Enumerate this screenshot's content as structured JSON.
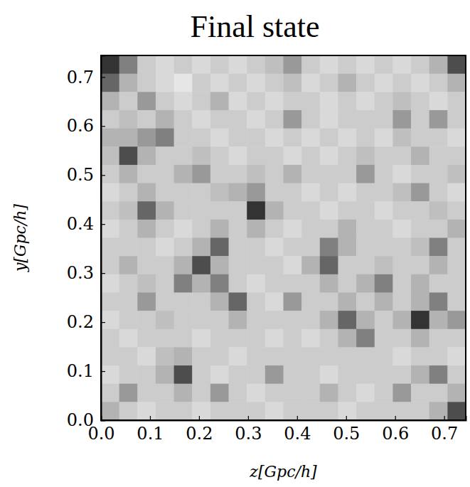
{
  "chart_data": {
    "type": "heatmap",
    "title": "Final state",
    "xlabel": "z[Gpc/h]",
    "ylabel": "y[Gpc/h]",
    "xlim": [
      0,
      0.744
    ],
    "ylim": [
      0,
      0.744
    ],
    "xticks": [
      {
        "value": 0,
        "label": "0.0"
      },
      {
        "value": 0.1,
        "label": "0.1"
      },
      {
        "value": 0.2,
        "label": "0.2"
      },
      {
        "value": 0.3,
        "label": "0.3"
      },
      {
        "value": 0.4,
        "label": "0.4"
      },
      {
        "value": 0.5,
        "label": "0.5"
      },
      {
        "value": 0.6,
        "label": "0.6"
      },
      {
        "value": 0.7,
        "label": "0.7"
      }
    ],
    "yticks": [
      {
        "value": 0,
        "label": "0.0"
      },
      {
        "value": 0.1,
        "label": "0.1"
      },
      {
        "value": 0.2,
        "label": "0.2"
      },
      {
        "value": 0.3,
        "label": "0.3"
      },
      {
        "value": 0.4,
        "label": "0.4"
      },
      {
        "value": 0.5,
        "label": "0.5"
      },
      {
        "value": 0.6,
        "label": "0.6"
      },
      {
        "value": 0.7,
        "label": "0.7"
      }
    ],
    "value_range": [
      0,
      1
    ],
    "colors": [
      "#ffffff",
      "#000000"
    ],
    "cells": [
      [
        0.8,
        0.5,
        0.2,
        0.15,
        0.2,
        0.15,
        0.2,
        0.15,
        0.2,
        0.25,
        0.4,
        0.2,
        0.15,
        0.2,
        0.15,
        0.2,
        0.15,
        0.2,
        0.3,
        0.7
      ],
      [
        0.6,
        0.3,
        0.2,
        0.15,
        0.1,
        0.2,
        0.15,
        0.2,
        0.15,
        0.2,
        0.25,
        0.15,
        0.2,
        0.3,
        0.2,
        0.15,
        0.2,
        0.15,
        0.2,
        0.3
      ],
      [
        0.3,
        0.2,
        0.4,
        0.2,
        0.15,
        0.2,
        0.3,
        0.15,
        0.2,
        0.15,
        0.2,
        0.2,
        0.15,
        0.2,
        0.15,
        0.2,
        0.25,
        0.2,
        0.15,
        0.2
      ],
      [
        0.2,
        0.25,
        0.2,
        0.3,
        0.2,
        0.15,
        0.2,
        0.2,
        0.15,
        0.2,
        0.4,
        0.2,
        0.15,
        0.2,
        0.2,
        0.2,
        0.4,
        0.2,
        0.4,
        0.2
      ],
      [
        0.3,
        0.3,
        0.4,
        0.5,
        0.2,
        0.2,
        0.15,
        0.2,
        0.2,
        0.15,
        0.2,
        0.15,
        0.2,
        0.15,
        0.2,
        0.15,
        0.25,
        0.2,
        0.2,
        0.15
      ],
      [
        0.25,
        0.7,
        0.3,
        0.2,
        0.2,
        0.25,
        0.2,
        0.15,
        0.2,
        0.2,
        0.15,
        0.2,
        0.15,
        0.2,
        0.25,
        0.2,
        0.2,
        0.3,
        0.2,
        0.2
      ],
      [
        0.2,
        0.3,
        0.2,
        0.2,
        0.3,
        0.4,
        0.2,
        0.2,
        0.25,
        0.2,
        0.3,
        0.2,
        0.2,
        0.2,
        0.4,
        0.2,
        0.15,
        0.2,
        0.2,
        0.25
      ],
      [
        0.15,
        0.2,
        0.3,
        0.2,
        0.2,
        0.2,
        0.25,
        0.3,
        0.4,
        0.2,
        0.2,
        0.15,
        0.2,
        0.15,
        0.2,
        0.2,
        0.25,
        0.4,
        0.2,
        0.15
      ],
      [
        0.2,
        0.25,
        0.6,
        0.3,
        0.2,
        0.2,
        0.2,
        0.2,
        0.8,
        0.3,
        0.2,
        0.2,
        0.15,
        0.2,
        0.2,
        0.15,
        0.2,
        0.2,
        0.25,
        0.2
      ],
      [
        0.15,
        0.2,
        0.3,
        0.2,
        0.15,
        0.2,
        0.3,
        0.2,
        0.3,
        0.2,
        0.15,
        0.2,
        0.2,
        0.3,
        0.2,
        0.2,
        0.15,
        0.2,
        0.2,
        0.3
      ],
      [
        0.2,
        0.2,
        0.2,
        0.15,
        0.2,
        0.3,
        0.6,
        0.2,
        0.2,
        0.15,
        0.2,
        0.2,
        0.5,
        0.3,
        0.2,
        0.2,
        0.2,
        0.25,
        0.5,
        0.2
      ],
      [
        0.2,
        0.3,
        0.2,
        0.2,
        0.3,
        0.7,
        0.3,
        0.2,
        0.2,
        0.2,
        0.15,
        0.3,
        0.6,
        0.2,
        0.2,
        0.25,
        0.2,
        0.2,
        0.3,
        0.2
      ],
      [
        0.15,
        0.2,
        0.25,
        0.2,
        0.5,
        0.3,
        0.5,
        0.2,
        0.15,
        0.2,
        0.2,
        0.2,
        0.3,
        0.2,
        0.3,
        0.5,
        0.2,
        0.3,
        0.2,
        0.2
      ],
      [
        0.2,
        0.2,
        0.4,
        0.2,
        0.2,
        0.2,
        0.3,
        0.6,
        0.2,
        0.15,
        0.4,
        0.2,
        0.2,
        0.3,
        0.2,
        0.3,
        0.2,
        0.3,
        0.5,
        0.2
      ],
      [
        0.15,
        0.2,
        0.2,
        0.25,
        0.2,
        0.2,
        0.2,
        0.3,
        0.2,
        0.2,
        0.2,
        0.2,
        0.3,
        0.6,
        0.3,
        0.2,
        0.3,
        0.8,
        0.3,
        0.4
      ],
      [
        0.2,
        0.15,
        0.2,
        0.2,
        0.2,
        0.15,
        0.2,
        0.2,
        0.2,
        0.15,
        0.2,
        0.15,
        0.2,
        0.3,
        0.5,
        0.2,
        0.2,
        0.3,
        0.2,
        0.2
      ],
      [
        0.2,
        0.2,
        0.15,
        0.25,
        0.3,
        0.2,
        0.2,
        0.15,
        0.2,
        0.2,
        0.2,
        0.2,
        0.2,
        0.2,
        0.2,
        0.2,
        0.15,
        0.2,
        0.2,
        0.15
      ],
      [
        0.15,
        0.2,
        0.2,
        0.3,
        0.7,
        0.2,
        0.15,
        0.2,
        0.2,
        0.4,
        0.2,
        0.2,
        0.15,
        0.2,
        0.2,
        0.2,
        0.2,
        0.3,
        0.5,
        0.2
      ],
      [
        0.2,
        0.4,
        0.2,
        0.2,
        0.3,
        0.2,
        0.4,
        0.2,
        0.15,
        0.2,
        0.2,
        0.2,
        0.3,
        0.2,
        0.15,
        0.2,
        0.4,
        0.2,
        0.2,
        0.3
      ],
      [
        0.3,
        0.2,
        0.15,
        0.2,
        0.2,
        0.15,
        0.2,
        0.2,
        0.2,
        0.15,
        0.2,
        0.2,
        0.2,
        0.15,
        0.2,
        0.2,
        0.2,
        0.2,
        0.3,
        0.7
      ]
    ]
  }
}
